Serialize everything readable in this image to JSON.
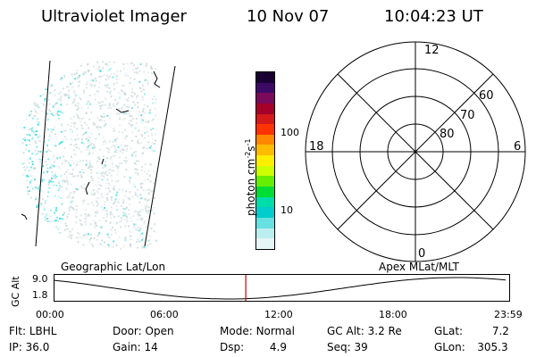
{
  "header": {
    "title": "Ultraviolet Imager",
    "date": "10 Nov 07",
    "time": "10:04:23 UT"
  },
  "colorbar": {
    "label_main": "photon cm",
    "label_sup1": "-2",
    "label_mid": "s",
    "label_sup2": "-1",
    "tick_100": "100",
    "tick_10": "10",
    "colors": [
      "#1a0033",
      "#3d0a66",
      "#7a0a5a",
      "#a5002a",
      "#d41a1a",
      "#ff3300",
      "#ff8800",
      "#ffbb00",
      "#ffee00",
      "#ccff00",
      "#66ee00",
      "#00dd33",
      "#00ddaa",
      "#00cccc",
      "#66e0e0",
      "#bbeeee",
      "#e6f5f5"
    ]
  },
  "polar": {
    "labels": {
      "top": "12",
      "bottom": "0",
      "left": "18",
      "right": "6",
      "lat60": "60",
      "lat70": "70",
      "lat80": "80"
    }
  },
  "timeline": {
    "left_label": "Geographic Lat/Lon",
    "right_label": "Apex  MLat/MLT",
    "axis_title": "GC Alt",
    "y_top": "9.0",
    "y_bottom": "1.8",
    "x_ticks": [
      "00:00",
      "06:00",
      "12:00",
      "18:00",
      "23:59"
    ],
    "marker_time": "10:04"
  },
  "info": {
    "row1": [
      {
        "label": "Flt:",
        "value": "LBHL"
      },
      {
        "label": "Door:",
        "value": "Open"
      },
      {
        "label": "Mode:",
        "value": "Normal"
      },
      {
        "label": "GC Alt:",
        "value": "3.2 Re"
      },
      {
        "label": "GLat:",
        "value": "7.2"
      }
    ],
    "row2": [
      {
        "label": "IP:",
        "value": "36.0"
      },
      {
        "label": "Gain:",
        "value": "14"
      },
      {
        "label": "Dsp:",
        "value": "4.9"
      },
      {
        "label": "Seq:",
        "value": "39"
      },
      {
        "label": "GLon:",
        "value": "305.3"
      }
    ]
  },
  "colors": {
    "marker": "#cc0000",
    "speckle_primary": "#33dddd",
    "speckle_secondary": "#c8d8d8"
  }
}
